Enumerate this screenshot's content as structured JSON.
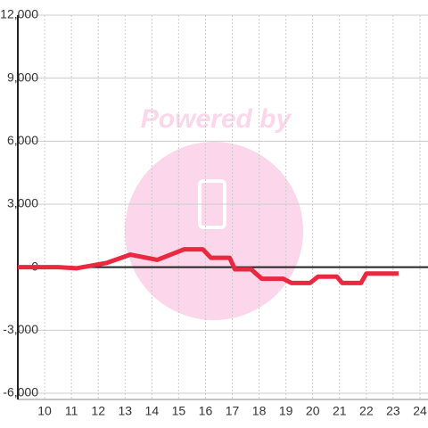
{
  "chart_data": {
    "type": "line",
    "watermark": "Powered by",
    "x": [
      9,
      10.5,
      11.2,
      12.3,
      13.2,
      14.2,
      15.2,
      15.9,
      16.2,
      16.9,
      17.1,
      17.7,
      18.1,
      18.9,
      19.2,
      19.9,
      20.2,
      20.9,
      21.1,
      21.8,
      22.0,
      23.2
    ],
    "series": [
      {
        "color": "#e8293f",
        "values": [
          0,
          0,
          -50,
          200,
          600,
          350,
          850,
          850,
          450,
          450,
          -100,
          -100,
          -550,
          -550,
          -750,
          -750,
          -450,
          -450,
          -750,
          -750,
          -300,
          -300
        ]
      }
    ],
    "xlim": [
      9,
      24.3
    ],
    "xticks": [
      10,
      11,
      12,
      13,
      14,
      15,
      16,
      17,
      18,
      19,
      20,
      21,
      22,
      23,
      24
    ],
    "ylim": [
      -6000,
      12000
    ],
    "yticks": [
      {
        "value": 12000,
        "label": "12,000"
      },
      {
        "value": 9000,
        "label": "9,000"
      },
      {
        "value": 6000,
        "label": "6,000"
      },
      {
        "value": 3000,
        "label": "3,000"
      },
      0,
      {
        "value": -3000,
        "label": "-3,000"
      },
      {
        "value": -6000,
        "label": "-6,000"
      }
    ],
    "grid": true
  }
}
